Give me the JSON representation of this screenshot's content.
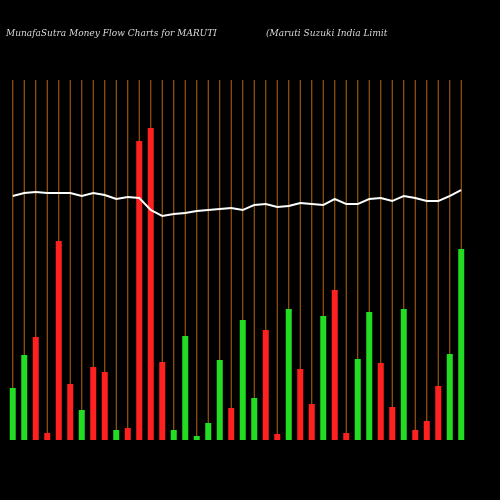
{
  "chart_data": {
    "type": "bar",
    "title": "MunafaSutra  Money Flow  Charts for MARUTI",
    "subtitle": "(Maruti  Suzuki  India  Limit",
    "categories": [
      null,
      null,
      null,
      null,
      null,
      null,
      null,
      null,
      null,
      null,
      null,
      null,
      null,
      null,
      null,
      null,
      null,
      null,
      null,
      null,
      null,
      null,
      null,
      null,
      null,
      null,
      null,
      null,
      null,
      null,
      null,
      null,
      null,
      null,
      null,
      null,
      null,
      null,
      null,
      null
    ],
    "values": [
      52,
      85,
      103,
      7,
      199,
      56,
      30,
      73,
      68,
      10,
      12,
      299,
      312,
      78,
      10,
      104,
      4,
      17,
      80,
      32,
      120,
      42,
      110,
      6,
      131,
      71,
      36,
      124,
      150,
      7,
      81,
      128,
      77,
      33,
      131,
      10,
      19,
      54,
      86,
      191
    ],
    "colors": [
      "#22dd22",
      "#22dd22",
      "#ff2020",
      "#ff2020",
      "#ff2020",
      "#ff2020",
      "#22dd22",
      "#ff2020",
      "#ff2020",
      "#22dd22",
      "#ff2020",
      "#ff2020",
      "#ff2020",
      "#ff2020",
      "#22dd22",
      "#22dd22",
      "#22dd22",
      "#22dd22",
      "#22dd22",
      "#ff2020",
      "#22dd22",
      "#22dd22",
      "#ff2020",
      "#ff2020",
      "#22dd22",
      "#ff2020",
      "#ff2020",
      "#22dd22",
      "#ff2020",
      "#ff2020",
      "#22dd22",
      "#22dd22",
      "#ff2020",
      "#ff2020",
      "#22dd22",
      "#ff2020",
      "#ff2020",
      "#ff2020",
      "#22dd22",
      "#22dd22"
    ],
    "line_values": [
      244,
      247,
      248,
      247,
      247,
      247,
      244,
      247,
      245,
      241,
      243,
      242,
      230,
      224,
      226,
      227,
      229,
      230,
      231,
      232,
      230,
      235,
      236,
      233,
      234,
      237,
      236,
      235,
      241,
      236,
      236,
      241,
      242,
      239,
      244,
      242,
      239,
      239,
      244,
      250
    ],
    "line_color": "#ffffff",
    "ylim": [
      0,
      360
    ],
    "gridline_color": "#b8660b"
  }
}
